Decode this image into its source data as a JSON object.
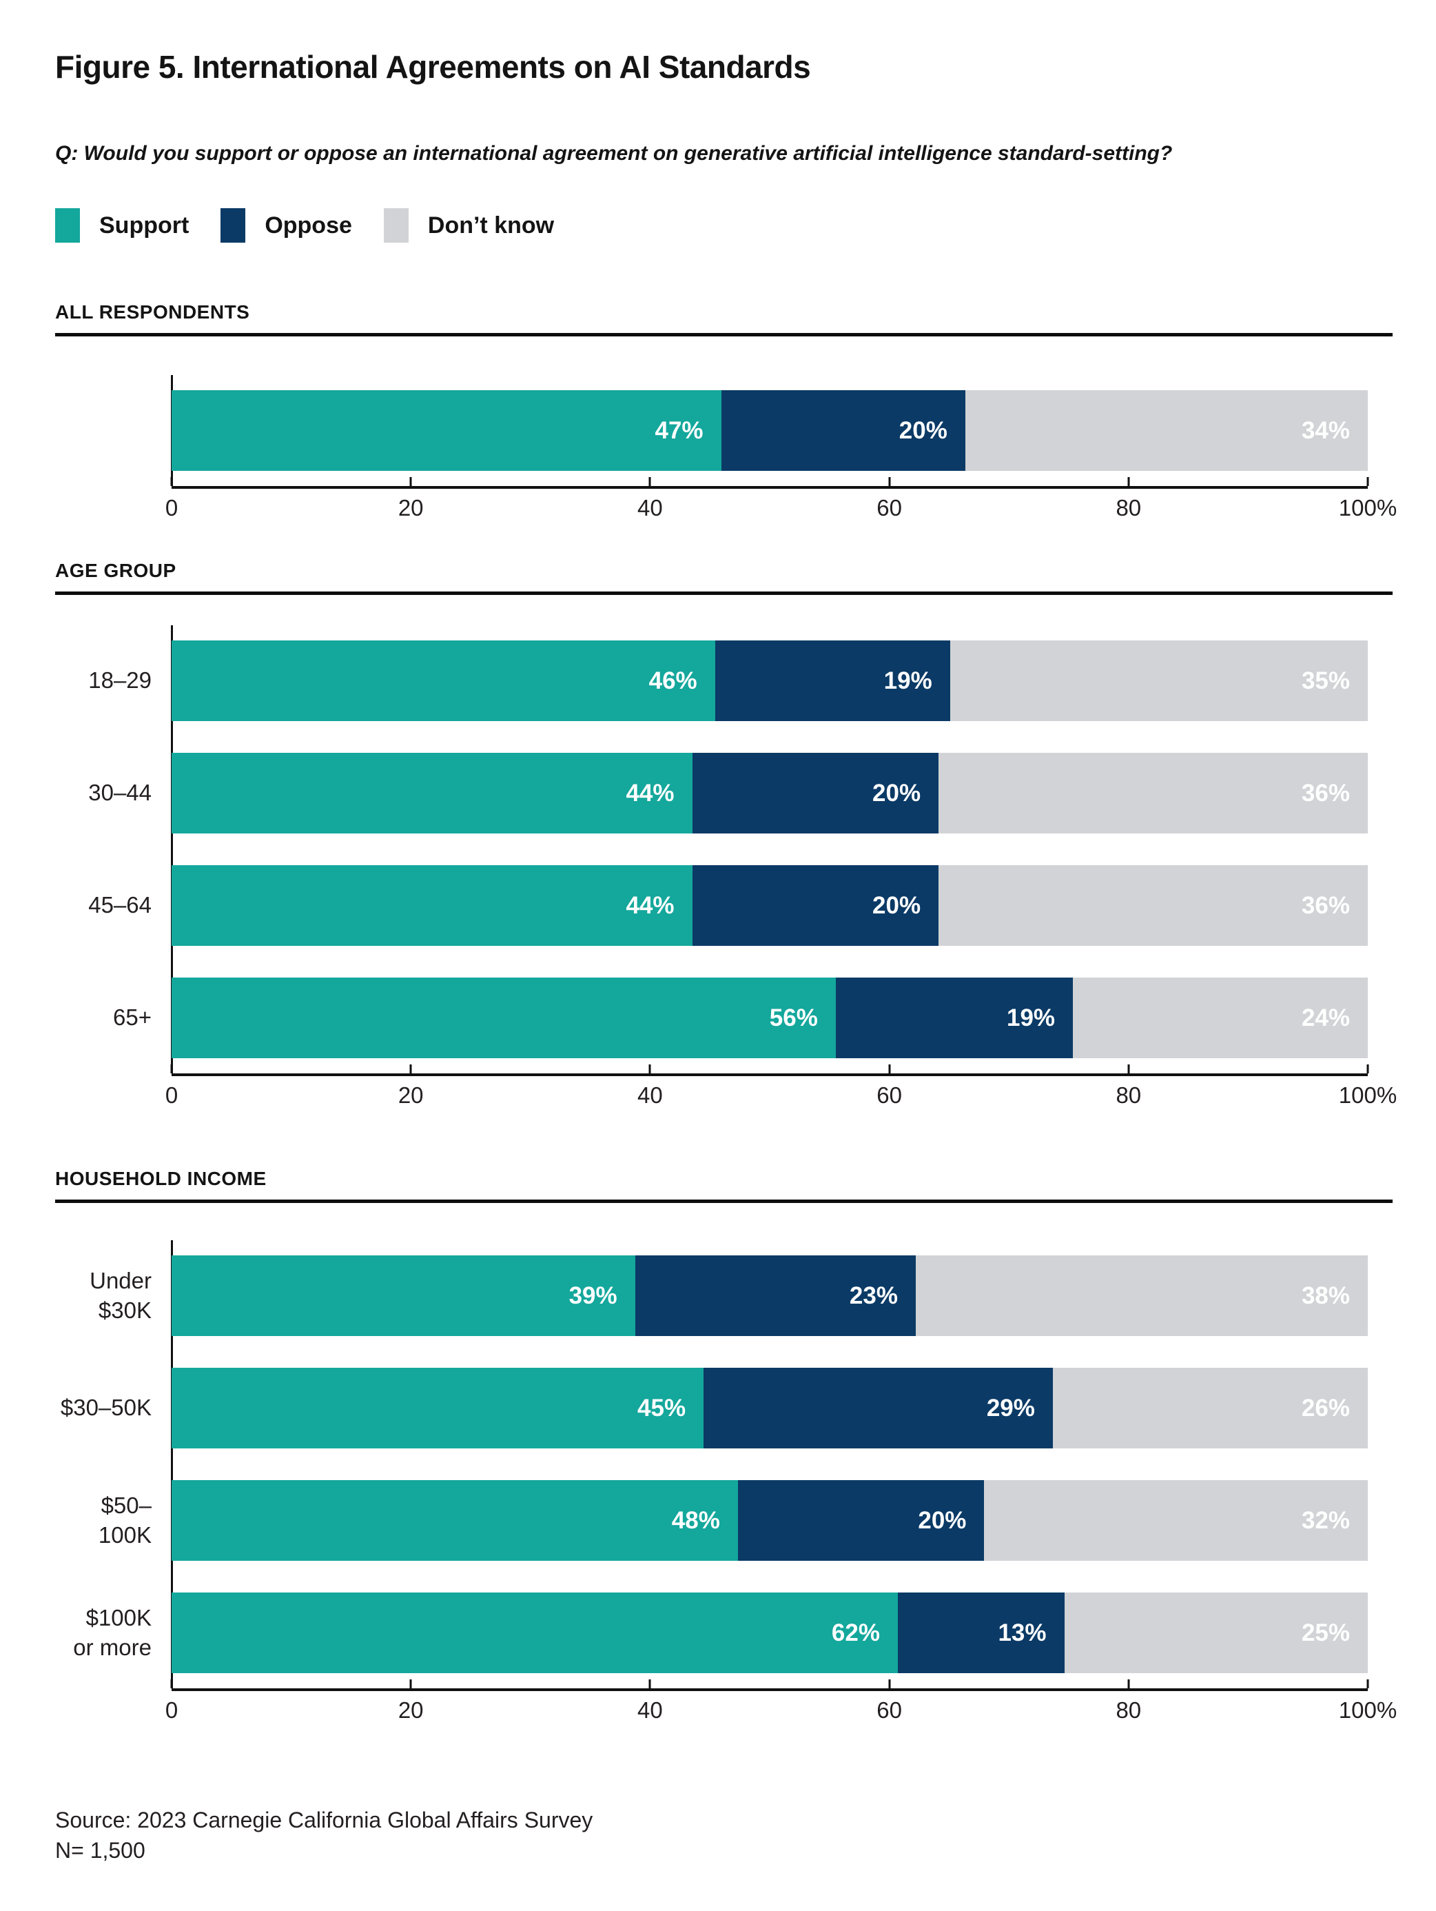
{
  "figure": {
    "title": "Figure 5. International Agreements on AI Standards",
    "question": "Q: Would you support or oppose an international agreement on generative artificial intelligence standard-setting?"
  },
  "legend": {
    "items": [
      {
        "key": "support",
        "label": "Support",
        "color": "#14a79c"
      },
      {
        "key": "oppose",
        "label": "Oppose",
        "color": "#0b3a66"
      },
      {
        "key": "dont_know",
        "label": "Don’t know",
        "color": "#d2d3d6"
      }
    ]
  },
  "colors": {
    "support": "#14a79c",
    "oppose": "#0b3a66",
    "dont_know": "#d2d3d6",
    "axis": "#111111",
    "text": "#231f20"
  },
  "axis": {
    "ticks": [
      {
        "pos": 0,
        "label": "0"
      },
      {
        "pos": 20,
        "label": "20"
      },
      {
        "pos": 40,
        "label": "40"
      },
      {
        "pos": 60,
        "label": "60"
      },
      {
        "pos": 80,
        "label": "80"
      },
      {
        "pos": 100,
        "label": "100%"
      }
    ],
    "xlim": [
      0,
      100
    ]
  },
  "chart_data": {
    "type": "bar",
    "stacked": true,
    "orientation": "horizontal",
    "unit": "%",
    "series_names": [
      "Support",
      "Oppose",
      "Don’t know"
    ],
    "xlim": [
      0,
      100
    ],
    "legend_position": "top",
    "grid": false,
    "sections": [
      {
        "title": "ALL RESPONDENTS",
        "rows": [
          {
            "label": "",
            "support": 47,
            "oppose": 20,
            "dont_know": 34
          }
        ]
      },
      {
        "title": "AGE GROUP",
        "rows": [
          {
            "label": "18–29",
            "support": 46,
            "oppose": 19,
            "dont_know": 35
          },
          {
            "label": "30–44",
            "support": 44,
            "oppose": 20,
            "dont_know": 36
          },
          {
            "label": "45–64",
            "support": 44,
            "oppose": 20,
            "dont_know": 36
          },
          {
            "label": "65+",
            "support": 56,
            "oppose": 19,
            "dont_know": 24
          }
        ]
      },
      {
        "title": "HOUSEHOLD INCOME",
        "rows": [
          {
            "label": "Under $30K",
            "support": 39,
            "oppose": 23,
            "dont_know": 38
          },
          {
            "label": "$30–50K",
            "support": 45,
            "oppose": 29,
            "dont_know": 26
          },
          {
            "label": "$50–100K",
            "support": 48,
            "oppose": 20,
            "dont_know": 32
          },
          {
            "label": "$100K\nor more",
            "support": 62,
            "oppose": 13,
            "dont_know": 25
          }
        ]
      }
    ]
  },
  "source": {
    "line1": "Source: 2023 Carnegie California Global Affairs Survey",
    "line2": "N= 1,500"
  }
}
